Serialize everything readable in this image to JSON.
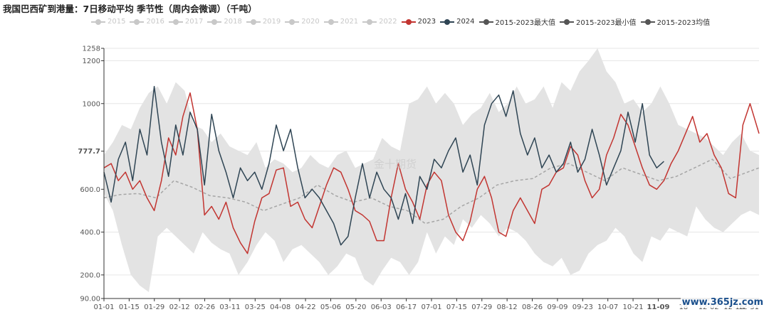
{
  "title": "我国巴西矿到港量：7日移动平均 季节性（周内会微调）（千吨）",
  "watermark": "金十期货",
  "site_mark": "www.365jz.com",
  "legend": [
    {
      "name": "2015",
      "color": "#c8c8c8",
      "active": false
    },
    {
      "name": "2016",
      "color": "#c8c8c8",
      "active": false
    },
    {
      "name": "2017",
      "color": "#c8c8c8",
      "active": false
    },
    {
      "name": "2018",
      "color": "#c8c8c8",
      "active": false
    },
    {
      "name": "2019",
      "color": "#c8c8c8",
      "active": false
    },
    {
      "name": "2020",
      "color": "#c8c8c8",
      "active": false
    },
    {
      "name": "2021",
      "color": "#c8c8c8",
      "active": false
    },
    {
      "name": "2022",
      "color": "#c8c8c8",
      "active": false
    },
    {
      "name": "2023",
      "color": "#c23531",
      "active": true
    },
    {
      "name": "2024",
      "color": "#2f4554",
      "active": true
    },
    {
      "name": "2015-2023最大值",
      "color": "#555555",
      "active": true
    },
    {
      "name": "2015-2023最小值",
      "color": "#555555",
      "active": true
    },
    {
      "name": "2015-2023均值",
      "color": "#555555",
      "active": true
    }
  ],
  "chart_data": {
    "type": "line",
    "title": "我国巴西矿到港量：7日移动平均 季节性（周内会微调）（千吨）",
    "unit": "千吨",
    "x_ticks": [
      "01-01",
      "01-15",
      "01-29",
      "02-12",
      "02-26",
      "03-11",
      "03-25",
      "04-08",
      "04-22",
      "05-06",
      "05-20",
      "06-03",
      "06-17",
      "07-01",
      "07-15",
      "07-29",
      "08-12",
      "08-26",
      "09-09",
      "09-23",
      "10-07",
      "10-21",
      "11-09",
      "18",
      "12-02",
      "12-16",
      "12-31"
    ],
    "highlight_x": "11-09",
    "y_ticks": [
      90.0,
      200.0,
      400.0,
      600.0,
      777.7,
      1000,
      1200,
      1258
    ],
    "y_tick_labels": [
      "90.00",
      "200.0",
      "400.0",
      "600.0",
      "777.7",
      "1000",
      "1200",
      "1258"
    ],
    "highlight_y_label": "777.7",
    "ylim": [
      90,
      1258
    ],
    "grid": "horizontal",
    "legend_position": "top",
    "band": {
      "name_upper": "2015-2023最大值",
      "name_lower": "2015-2023最小值",
      "color": "#e3e3e3",
      "day": [
        1,
        6,
        11,
        16,
        21,
        26,
        31,
        36,
        41,
        46,
        51,
        56,
        61,
        66,
        71,
        76,
        81,
        86,
        91,
        96,
        101,
        106,
        111,
        116,
        121,
        126,
        131,
        136,
        141,
        146,
        151,
        156,
        161,
        166,
        171,
        176,
        181,
        186,
        191,
        196,
        201,
        206,
        211,
        216,
        221,
        226,
        231,
        236,
        241,
        246,
        251,
        256,
        261,
        266,
        271,
        276,
        281,
        286,
        291,
        296,
        301,
        306,
        311,
        316,
        321,
        326,
        331,
        336,
        341,
        346,
        351,
        356,
        361,
        366
      ],
      "upper": [
        760,
        820,
        900,
        880,
        980,
        1050,
        1080,
        1000,
        1100,
        1060,
        900,
        880,
        820,
        860,
        800,
        780,
        760,
        820,
        700,
        740,
        720,
        680,
        700,
        760,
        720,
        700,
        760,
        780,
        700,
        720,
        740,
        840,
        800,
        780,
        1000,
        1020,
        1080,
        1000,
        1050,
        1000,
        900,
        950,
        980,
        1050,
        960,
        1000,
        1080,
        1000,
        1020,
        1080,
        980,
        1100,
        1060,
        1150,
        1200,
        1258,
        1150,
        1100,
        1000,
        1020,
        960,
        1000,
        1080,
        1000,
        900,
        880,
        860,
        840,
        800,
        760,
        820,
        860,
        780,
        760
      ],
      "lower": [
        580,
        500,
        340,
        200,
        150,
        120,
        380,
        420,
        380,
        340,
        300,
        400,
        350,
        320,
        300,
        200,
        260,
        340,
        400,
        360,
        260,
        320,
        340,
        300,
        260,
        200,
        240,
        300,
        280,
        180,
        150,
        220,
        280,
        260,
        200,
        260,
        400,
        300,
        380,
        340,
        460,
        420,
        480,
        440,
        380,
        420,
        400,
        360,
        300,
        260,
        240,
        280,
        200,
        220,
        300,
        340,
        360,
        420,
        380,
        300,
        260,
        380,
        360,
        420,
        400,
        380,
        520,
        460,
        420,
        400,
        440,
        480,
        500,
        480
      ]
    },
    "series": [
      {
        "name": "2015-2023均值",
        "color": "#a6a6a6",
        "dash": true,
        "day": [
          1,
          10,
          20,
          30,
          40,
          50,
          60,
          70,
          80,
          90,
          100,
          110,
          120,
          130,
          140,
          150,
          160,
          170,
          180,
          190,
          200,
          210,
          220,
          230,
          240,
          250,
          260,
          270,
          280,
          290,
          300,
          310,
          320,
          330,
          340,
          350,
          366
        ],
        "values": [
          560,
          575,
          580,
          560,
          640,
          610,
          570,
          560,
          540,
          500,
          530,
          560,
          620,
          570,
          540,
          560,
          520,
          500,
          440,
          460,
          520,
          560,
          620,
          640,
          650,
          700,
          720,
          680,
          640,
          700,
          670,
          640,
          660,
          700,
          740,
          650,
          700
        ]
      },
      {
        "name": "2023",
        "color": "#c23531",
        "day": [
          1,
          5,
          9,
          13,
          17,
          21,
          25,
          29,
          33,
          37,
          41,
          45,
          49,
          53,
          57,
          61,
          65,
          69,
          73,
          77,
          81,
          85,
          89,
          93,
          97,
          101,
          105,
          109,
          113,
          117,
          121,
          125,
          129,
          133,
          137,
          141,
          145,
          149,
          153,
          157,
          161,
          165,
          169,
          173,
          177,
          181,
          185,
          189,
          193,
          197,
          201,
          205,
          209,
          213,
          217,
          221,
          225,
          229,
          233,
          237,
          241,
          245,
          249,
          253,
          257,
          261,
          265,
          269,
          273,
          277,
          281,
          285,
          289,
          293,
          297,
          301,
          305,
          309,
          313,
          317,
          321,
          325,
          329,
          333,
          337,
          341,
          345,
          349,
          353,
          357,
          361,
          366
        ],
        "values": [
          700,
          720,
          640,
          680,
          600,
          640,
          560,
          500,
          640,
          840,
          760,
          940,
          1050,
          880,
          480,
          520,
          460,
          540,
          420,
          350,
          300,
          450,
          560,
          580,
          690,
          700,
          520,
          540,
          460,
          420,
          520,
          620,
          700,
          680,
          600,
          500,
          480,
          450,
          360,
          360,
          560,
          720,
          600,
          540,
          460,
          620,
          680,
          640,
          480,
          400,
          360,
          450,
          600,
          660,
          560,
          400,
          380,
          500,
          560,
          500,
          440,
          600,
          620,
          680,
          700,
          800,
          760,
          640,
          560,
          600,
          760,
          840,
          950,
          900,
          800,
          700,
          620,
          600,
          640,
          720,
          780,
          860,
          940,
          820,
          860,
          760,
          700,
          580,
          560,
          900,
          1000,
          860
        ]
      },
      {
        "name": "2024",
        "color": "#2f4554",
        "day": [
          1,
          5,
          9,
          13,
          17,
          21,
          25,
          29,
          33,
          37,
          41,
          45,
          49,
          53,
          57,
          61,
          65,
          69,
          73,
          77,
          81,
          85,
          89,
          93,
          97,
          101,
          105,
          109,
          113,
          117,
          121,
          125,
          129,
          133,
          137,
          141,
          145,
          149,
          153,
          157,
          161,
          165,
          169,
          173,
          177,
          181,
          185,
          189,
          193,
          197,
          201,
          205,
          209,
          213,
          217,
          221,
          225,
          229,
          233,
          237,
          241,
          245,
          249,
          253,
          257,
          261,
          265,
          269,
          273,
          277,
          281,
          285,
          289,
          293,
          297,
          301,
          305,
          309,
          313
        ],
        "values": [
          680,
          540,
          740,
          820,
          640,
          880,
          760,
          1080,
          820,
          660,
          900,
          760,
          960,
          880,
          620,
          950,
          780,
          680,
          560,
          700,
          640,
          680,
          600,
          720,
          900,
          780,
          880,
          700,
          560,
          600,
          560,
          500,
          440,
          340,
          380,
          560,
          720,
          560,
          680,
          600,
          560,
          460,
          580,
          440,
          660,
          600,
          740,
          700,
          780,
          840,
          680,
          760,
          620,
          900,
          1000,
          1040,
          940,
          1060,
          860,
          760,
          840,
          700,
          760,
          680,
          720,
          820,
          680,
          740,
          880,
          760,
          620,
          700,
          780,
          960,
          820,
          1000,
          760,
          700,
          730
        ]
      }
    ]
  }
}
